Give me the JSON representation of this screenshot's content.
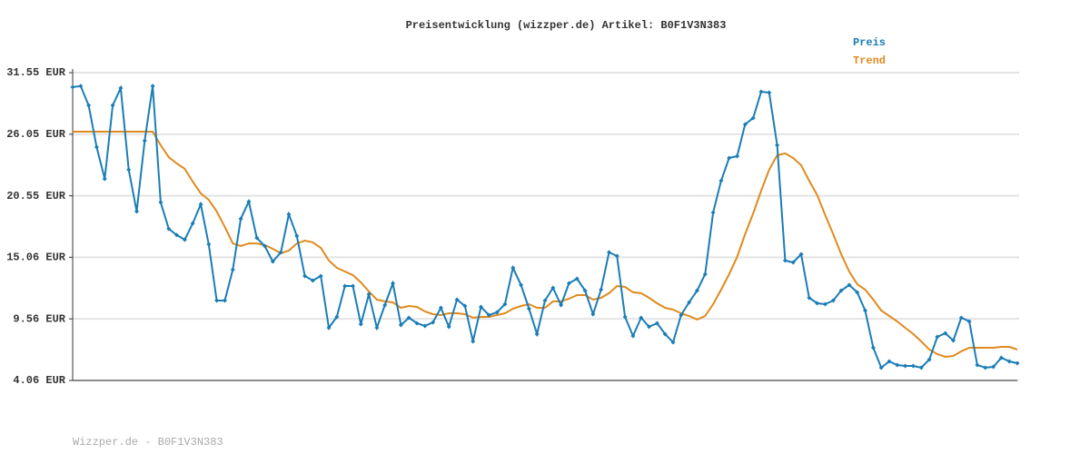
{
  "chart_data": {
    "type": "line",
    "title": "Preisentwicklung (wizzper.de) Artikel: B0F1V3N383",
    "footer": "Wizzper.de - B0F1V3N383",
    "ylim": [
      4.06,
      31.55
    ],
    "yticks": [
      {
        "value": 4.06,
        "label": "4.06 EUR"
      },
      {
        "value": 9.56,
        "label": "9.56 EUR"
      },
      {
        "value": 15.06,
        "label": "15.06 EUR"
      },
      {
        "value": 20.55,
        "label": "20.55 EUR"
      },
      {
        "value": 26.05,
        "label": "26.05 EUR"
      },
      {
        "value": 31.55,
        "label": "31.55 EUR"
      }
    ],
    "grid": true,
    "legend": "top-right",
    "series": [
      {
        "name": "Preis",
        "color": "#1a7db6",
        "markers": true,
        "values": [
          30.26,
          30.35,
          28.63,
          24.9,
          22.06,
          28.63,
          30.17,
          22.88,
          19.15,
          25.47,
          30.35,
          19.96,
          17.6,
          17.04,
          16.63,
          18.09,
          19.79,
          16.22,
          11.2,
          11.2,
          13.95,
          18.5,
          20.04,
          16.79,
          16.06,
          14.68,
          15.5,
          18.9,
          16.96,
          13.39,
          12.98,
          13.39,
          8.76,
          9.74,
          12.49,
          12.49,
          9.09,
          11.76,
          8.76,
          10.79,
          12.74,
          9.01,
          9.66,
          9.17,
          8.93,
          9.25,
          10.55,
          8.85,
          11.28,
          10.71,
          7.55,
          10.63,
          9.9,
          10.14,
          10.87,
          14.12,
          12.58,
          10.47,
          8.2,
          11.2,
          12.33,
          10.79,
          12.74,
          13.14,
          12.09,
          9.98,
          12.17,
          15.5,
          15.17,
          9.74,
          8.03,
          9.66,
          8.85,
          9.17,
          8.2,
          7.47,
          9.9,
          11.03,
          12.09,
          13.55,
          19.06,
          21.9,
          23.93,
          24.09,
          26.93,
          27.5,
          29.85,
          29.77,
          25.07,
          14.77,
          14.6,
          15.33,
          11.44,
          10.95,
          10.87,
          11.2,
          12.09,
          12.58,
          11.93,
          10.3,
          6.98,
          5.2,
          5.76,
          5.44,
          5.36,
          5.36,
          5.2,
          5.93,
          7.95,
          8.28,
          7.63,
          9.66,
          9.33,
          5.44,
          5.2,
          5.28,
          6.09,
          5.76,
          5.6
        ]
      },
      {
        "name": "Trend",
        "color": "#e08a1e",
        "markers": false,
        "values": [
          26.28,
          26.28,
          26.28,
          26.28,
          26.28,
          26.28,
          26.28,
          26.28,
          26.28,
          26.28,
          26.28,
          25.07,
          24.01,
          23.44,
          22.96,
          21.82,
          20.77,
          20.2,
          19.15,
          17.77,
          16.3,
          16.06,
          16.3,
          16.3,
          16.14,
          15.82,
          15.41,
          15.66,
          16.3,
          16.55,
          16.39,
          15.9,
          14.77,
          14.12,
          13.79,
          13.47,
          12.82,
          12.01,
          11.28,
          11.12,
          11.03,
          10.55,
          10.71,
          10.63,
          10.22,
          9.98,
          9.9,
          10.06,
          10.06,
          9.98,
          9.66,
          9.74,
          9.74,
          9.9,
          10.06,
          10.47,
          10.71,
          10.87,
          10.55,
          10.55,
          11.12,
          11.12,
          11.36,
          11.68,
          11.68,
          11.28,
          11.44,
          11.85,
          12.49,
          12.41,
          11.93,
          11.85,
          11.44,
          10.95,
          10.55,
          10.39,
          10.06,
          9.82,
          9.5,
          9.82,
          10.87,
          12.17,
          13.55,
          15.09,
          17.12,
          18.98,
          21.01,
          22.88,
          24.17,
          24.34,
          23.93,
          23.28,
          21.9,
          20.61,
          18.82,
          17.12,
          15.33,
          13.79,
          12.66,
          12.17,
          11.28,
          10.3,
          9.82,
          9.33,
          8.76,
          8.2,
          7.55,
          6.82,
          6.41,
          6.17,
          6.25,
          6.66,
          6.98,
          6.98,
          6.98,
          6.98,
          7.06,
          7.06,
          6.82
        ]
      }
    ]
  }
}
